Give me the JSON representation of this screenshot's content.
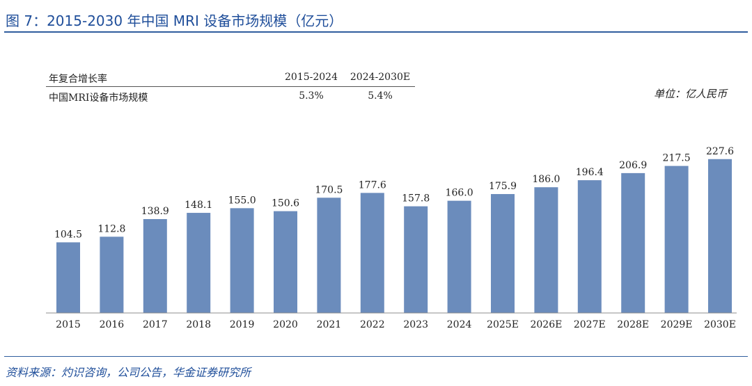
{
  "figure": {
    "title": "图 7：2015-2030 年中国 MRI 设备市场规模（亿元）",
    "source": "资料来源：灼识咨询，公司公告，华金证券研究所",
    "unit": "单位：亿人民币"
  },
  "cagr_table": {
    "header": [
      "年复合增长率",
      "2015-2024",
      "2024-2030E"
    ],
    "row": [
      "中国MRI设备市场规模",
      "5.3%",
      "5.4%"
    ]
  },
  "colors": {
    "bar": "#6b8cbc",
    "accent": "#1f4e9a"
  },
  "chart_data": {
    "type": "bar",
    "title": "",
    "xlabel": "",
    "ylabel": "",
    "categories": [
      "2015",
      "2016",
      "2017",
      "2018",
      "2019",
      "2020",
      "2021",
      "2022",
      "2023",
      "2024",
      "2025E",
      "2026E",
      "2027E",
      "2028E",
      "2029E",
      "2030E"
    ],
    "values": [
      104.5,
      112.8,
      138.9,
      148.1,
      155.0,
      150.6,
      170.5,
      177.6,
      157.8,
      166.0,
      175.9,
      186.0,
      196.4,
      206.9,
      217.5,
      227.6
    ],
    "value_labels": [
      "104.5",
      "112.8",
      "138.9",
      "148.1",
      "155.0",
      "150.6",
      "170.5",
      "177.6",
      "157.8",
      "166.0",
      "175.9",
      "186.0",
      "196.4",
      "206.9",
      "217.5",
      "227.6"
    ],
    "ylim": [
      0,
      250
    ],
    "grid": false,
    "legend": "none"
  }
}
